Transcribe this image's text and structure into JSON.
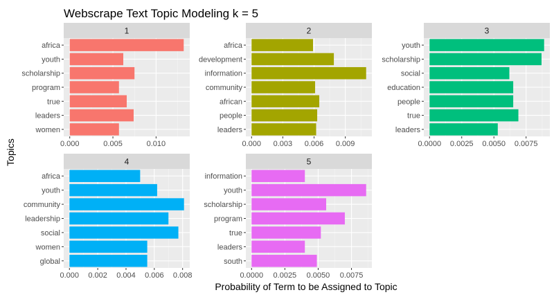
{
  "chart_data": {
    "type": "bar",
    "orientation": "horizontal",
    "title": "Webscrape Text Topic Modeling k = 5",
    "xlabel": "Probability of Term to be Assigned to Topic",
    "ylabel": "Topics",
    "grid": true,
    "legend": "none",
    "facets": [
      {
        "label": "1",
        "color": "#F8766D",
        "categories": [
          "africa",
          "youth",
          "scholarship",
          "program",
          "true",
          "leaders",
          "women"
        ],
        "values": [
          0.0132,
          0.0062,
          0.0075,
          0.0057,
          0.0066,
          0.0074,
          0.0057
        ],
        "xlim": [
          -0.0007,
          0.0139
        ],
        "xticks": [
          0.0,
          0.005,
          0.01
        ],
        "xtick_labels": [
          "0.000",
          "0.005",
          "0.010"
        ]
      },
      {
        "label": "2",
        "color": "#A3A500",
        "categories": [
          "africa",
          "development",
          "information",
          "community",
          "african",
          "people",
          "leaders"
        ],
        "values": [
          0.0059,
          0.0079,
          0.011,
          0.0061,
          0.0065,
          0.0063,
          0.0062
        ],
        "xlim": [
          -0.00055,
          0.01155
        ],
        "xticks": [
          0.0,
          0.003,
          0.006,
          0.009
        ],
        "xtick_labels": [
          "0.000",
          "0.003",
          "0.006",
          "0.009"
        ]
      },
      {
        "label": "3",
        "color": "#00BF7D",
        "categories": [
          "youth",
          "scholarship",
          "social",
          "education",
          "people",
          "true",
          "leaders"
        ],
        "values": [
          0.0089,
          0.0087,
          0.0062,
          0.0065,
          0.0065,
          0.0069,
          0.0053
        ],
        "xlim": [
          -0.000445,
          0.009345
        ],
        "xticks": [
          0.0,
          0.0025,
          0.005,
          0.0075
        ],
        "xtick_labels": [
          "0.0000",
          "0.0025",
          "0.0050",
          "0.0075"
        ]
      },
      {
        "label": "4",
        "color": "#00B0F6",
        "categories": [
          "africa",
          "youth",
          "community",
          "leadership",
          "social",
          "women",
          "global"
        ],
        "values": [
          0.005,
          0.0062,
          0.0081,
          0.007,
          0.0077,
          0.0055,
          0.0055
        ],
        "xlim": [
          -0.000405,
          0.008505
        ],
        "xticks": [
          0.0,
          0.002,
          0.004,
          0.006,
          0.008
        ],
        "xtick_labels": [
          "0.000",
          "0.002",
          "0.004",
          "0.006",
          "0.008"
        ]
      },
      {
        "label": "5",
        "color": "#E76BF3",
        "categories": [
          "information",
          "youth",
          "scholarship",
          "program",
          "true",
          "leaders",
          "south"
        ],
        "values": [
          0.004,
          0.0086,
          0.0056,
          0.007,
          0.0052,
          0.004,
          0.0049
        ],
        "xlim": [
          -0.00043,
          0.00903
        ],
        "xticks": [
          0.0,
          0.0025,
          0.005,
          0.0075
        ],
        "xtick_labels": [
          "0.0000",
          "0.0025",
          "0.0050",
          "0.0075"
        ]
      }
    ]
  }
}
